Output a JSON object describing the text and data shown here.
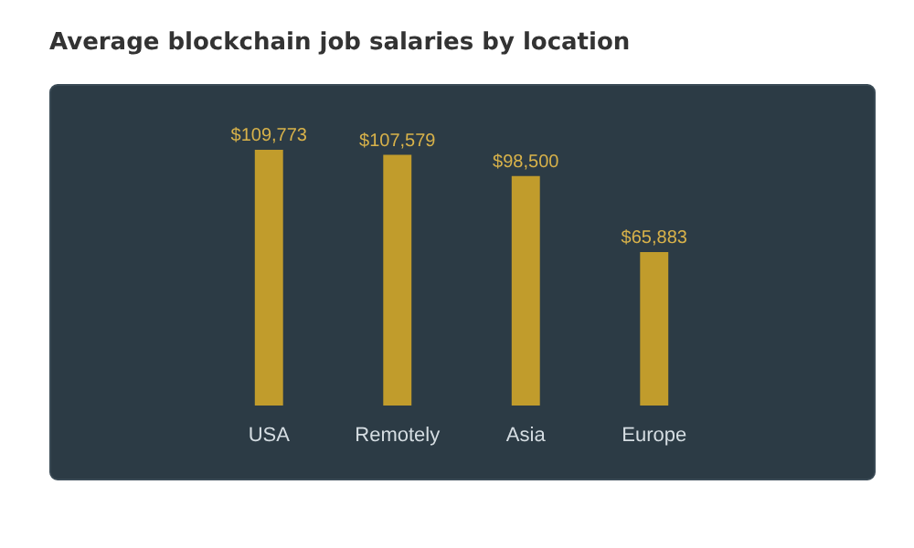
{
  "chart_data": {
    "type": "bar",
    "title": "Average blockchain job salaries by location",
    "categories": [
      "USA",
      "Remotely",
      "Asia",
      "Europe"
    ],
    "values": [
      109773,
      107579,
      98500,
      65883
    ],
    "value_labels": [
      "$109,773",
      "$107,579",
      "$98,500",
      "$65,883"
    ],
    "color": "#c9a12b",
    "tick_labels": "x"
  }
}
